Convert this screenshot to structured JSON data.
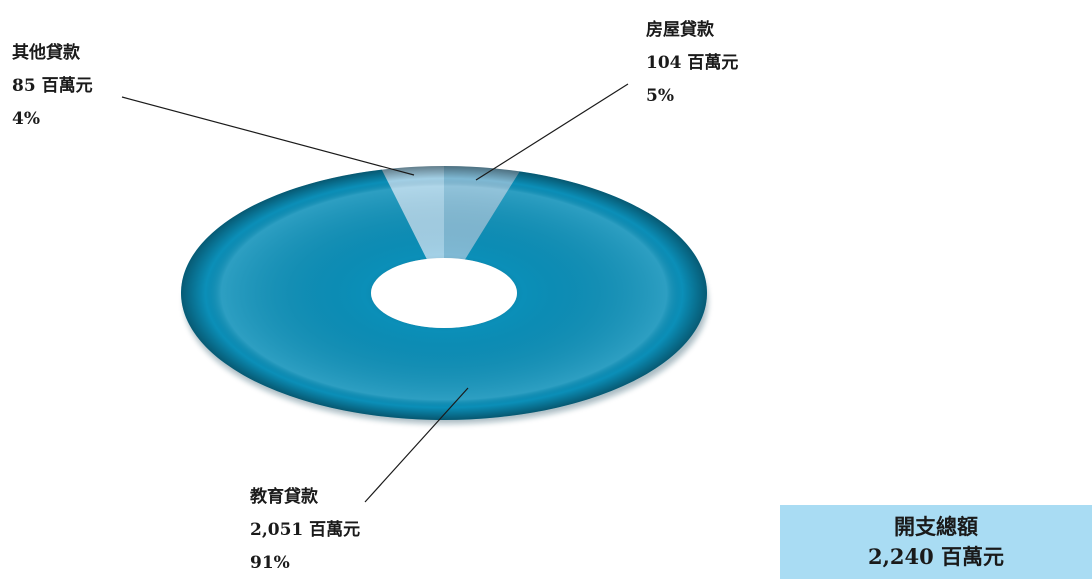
{
  "chart_data": {
    "type": "pie",
    "donut": true,
    "slices": [
      {
        "name": "教育貸款",
        "amount": "2,051 百萬元",
        "percent_label": "91%",
        "value": 2051,
        "color": "#0b8fb8"
      },
      {
        "name": "房屋貸款",
        "amount": "104 百萬元",
        "percent_label": "5%",
        "value": 104,
        "color": "#7fb9d4"
      },
      {
        "name": "其他貸款",
        "amount": "85 百萬元",
        "percent_label": "4%",
        "value": 85,
        "color": "#a3d0e6"
      }
    ]
  },
  "total": {
    "title": "開支總額",
    "amount": "2,240 百萬元"
  }
}
